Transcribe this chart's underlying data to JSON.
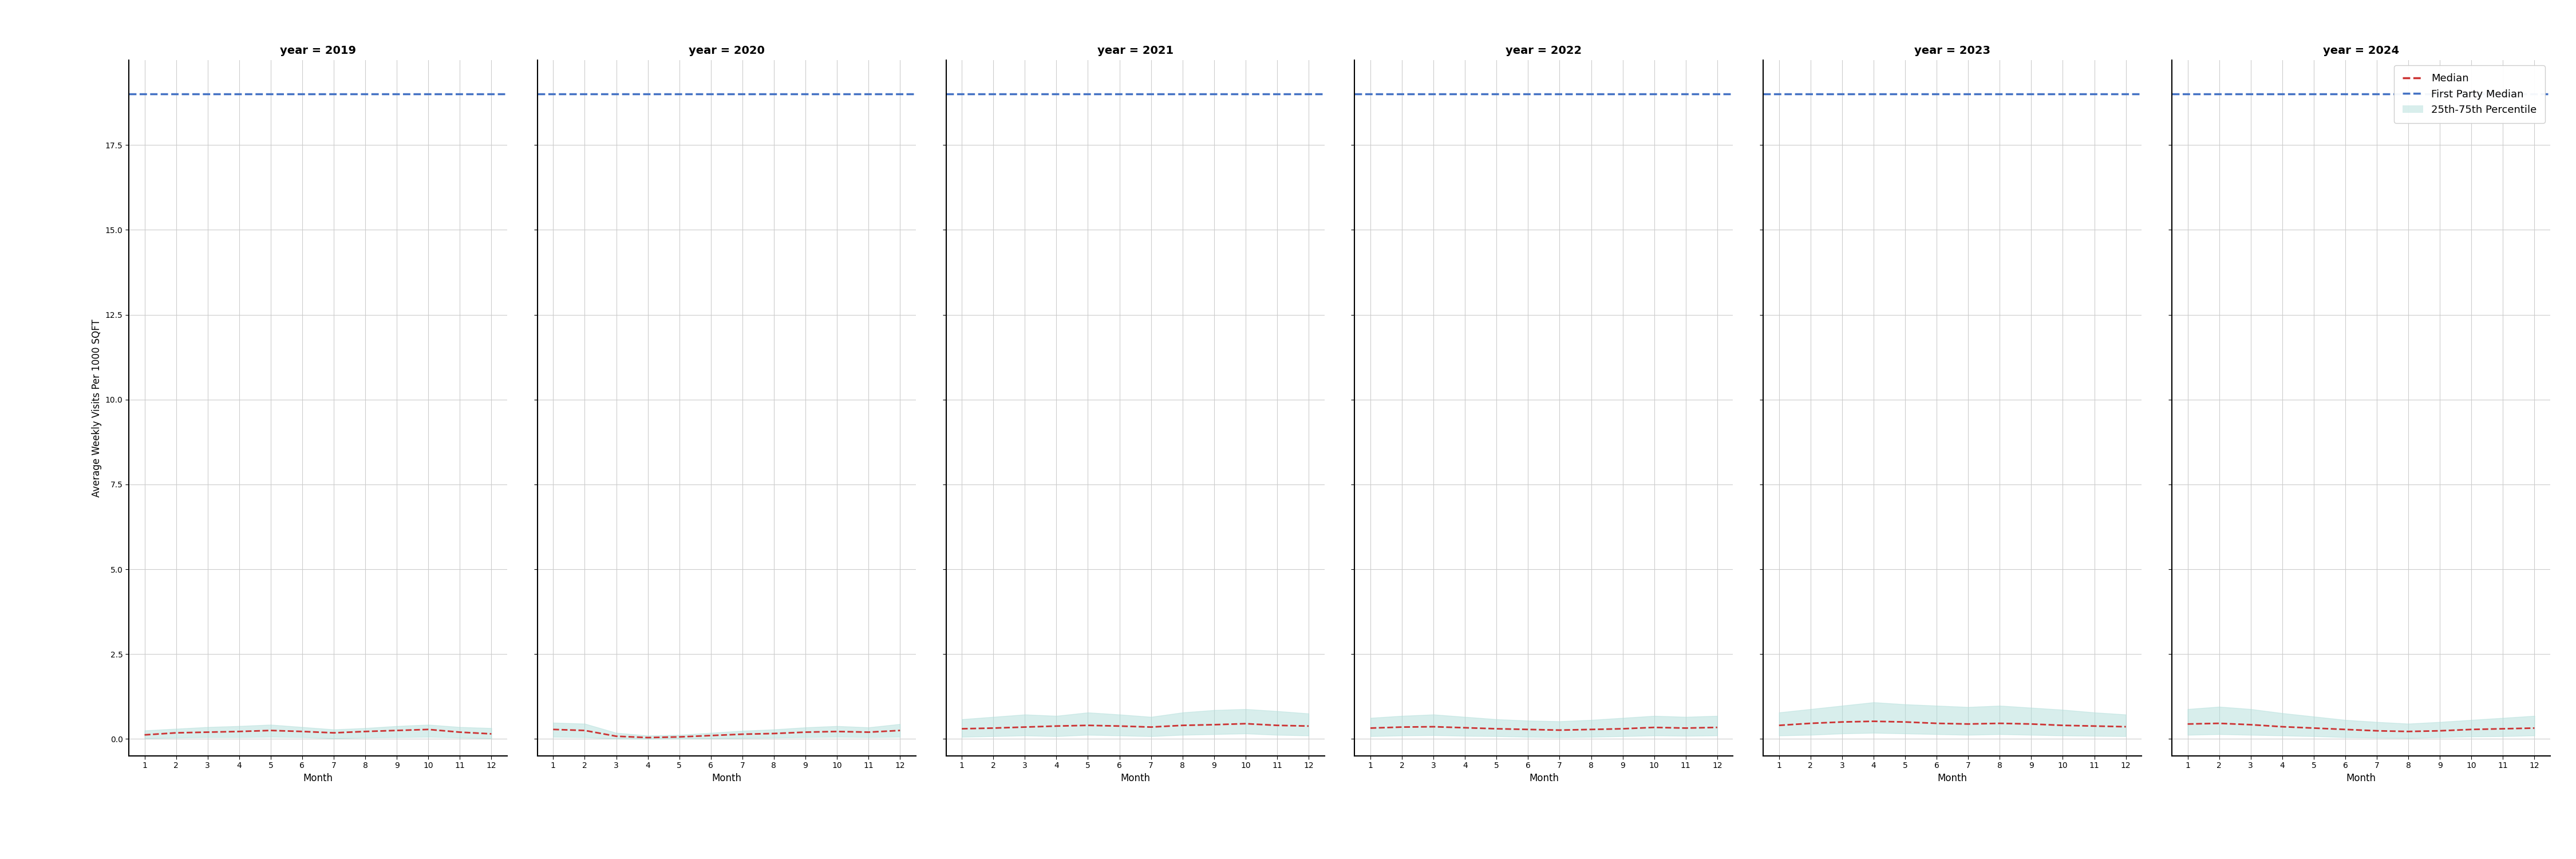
{
  "years": [
    2019,
    2020,
    2021,
    2022,
    2023,
    2024
  ],
  "months": [
    1,
    2,
    3,
    4,
    5,
    6,
    7,
    8,
    9,
    10,
    11,
    12
  ],
  "first_party_median": 19.0,
  "ylabel": "Average Weekly Visits Per 1000 SQFT",
  "xlabel": "Month",
  "median_color": "#cc3333",
  "first_party_color": "#4472c4",
  "fill_color": "#b2dfdb",
  "fill_alpha": 0.5,
  "median_values": {
    "2019": [
      0.12,
      0.18,
      0.2,
      0.22,
      0.25,
      0.22,
      0.18,
      0.22,
      0.25,
      0.28,
      0.2,
      0.15
    ],
    "2020": [
      0.28,
      0.25,
      0.08,
      0.04,
      0.06,
      0.1,
      0.14,
      0.16,
      0.2,
      0.22,
      0.2,
      0.25
    ],
    "2021": [
      0.3,
      0.32,
      0.35,
      0.38,
      0.4,
      0.38,
      0.35,
      0.4,
      0.42,
      0.45,
      0.4,
      0.38
    ],
    "2022": [
      0.32,
      0.35,
      0.36,
      0.33,
      0.3,
      0.28,
      0.26,
      0.28,
      0.3,
      0.34,
      0.32,
      0.34
    ],
    "2023": [
      0.4,
      0.46,
      0.5,
      0.52,
      0.5,
      0.46,
      0.44,
      0.46,
      0.44,
      0.4,
      0.38,
      0.36
    ],
    "2024": [
      0.44,
      0.46,
      0.42,
      0.36,
      0.32,
      0.28,
      0.24,
      0.22,
      0.24,
      0.28,
      0.3,
      0.32
    ]
  },
  "p25_values": {
    "2019": [
      0.02,
      0.04,
      0.05,
      0.05,
      0.06,
      0.05,
      0.02,
      0.04,
      0.05,
      0.06,
      0.04,
      0.02
    ],
    "2020": [
      0.06,
      0.05,
      0.01,
      0.005,
      0.01,
      0.02,
      0.03,
      0.04,
      0.05,
      0.06,
      0.05,
      0.06
    ],
    "2021": [
      0.06,
      0.08,
      0.1,
      0.08,
      0.12,
      0.1,
      0.08,
      0.12,
      0.14,
      0.16,
      0.12,
      0.1
    ],
    "2022": [
      0.08,
      0.1,
      0.11,
      0.09,
      0.08,
      0.06,
      0.05,
      0.06,
      0.08,
      0.1,
      0.09,
      0.1
    ],
    "2023": [
      0.1,
      0.12,
      0.16,
      0.18,
      0.16,
      0.14,
      0.12,
      0.14,
      0.12,
      0.1,
      0.09,
      0.08
    ],
    "2024": [
      0.12,
      0.14,
      0.12,
      0.1,
      0.08,
      0.05,
      0.04,
      0.03,
      0.05,
      0.07,
      0.08,
      0.1
    ]
  },
  "p75_values": {
    "2019": [
      0.25,
      0.3,
      0.35,
      0.38,
      0.42,
      0.35,
      0.28,
      0.32,
      0.38,
      0.42,
      0.35,
      0.32
    ],
    "2020": [
      0.48,
      0.45,
      0.18,
      0.1,
      0.12,
      0.18,
      0.24,
      0.28,
      0.34,
      0.38,
      0.34,
      0.44
    ],
    "2021": [
      0.58,
      0.65,
      0.72,
      0.68,
      0.78,
      0.72,
      0.65,
      0.78,
      0.85,
      0.88,
      0.82,
      0.75
    ],
    "2022": [
      0.62,
      0.68,
      0.72,
      0.65,
      0.58,
      0.54,
      0.52,
      0.56,
      0.62,
      0.68,
      0.65,
      0.68
    ],
    "2023": [
      0.78,
      0.88,
      0.98,
      1.08,
      1.02,
      0.98,
      0.94,
      0.98,
      0.92,
      0.86,
      0.78,
      0.72
    ],
    "2024": [
      0.88,
      0.95,
      0.88,
      0.76,
      0.66,
      0.56,
      0.5,
      0.45,
      0.5,
      0.56,
      0.62,
      0.68
    ]
  },
  "ylim": [
    -0.5,
    20.0
  ],
  "yticks": [
    0.0,
    2.5,
    5.0,
    7.5,
    10.0,
    12.5,
    15.0,
    17.5
  ],
  "fig_width": 45,
  "fig_height": 15,
  "background_color": "white",
  "spine_color": "black",
  "grid_color": "#cccccc",
  "title_fontsize": 14,
  "label_fontsize": 12,
  "tick_fontsize": 10
}
